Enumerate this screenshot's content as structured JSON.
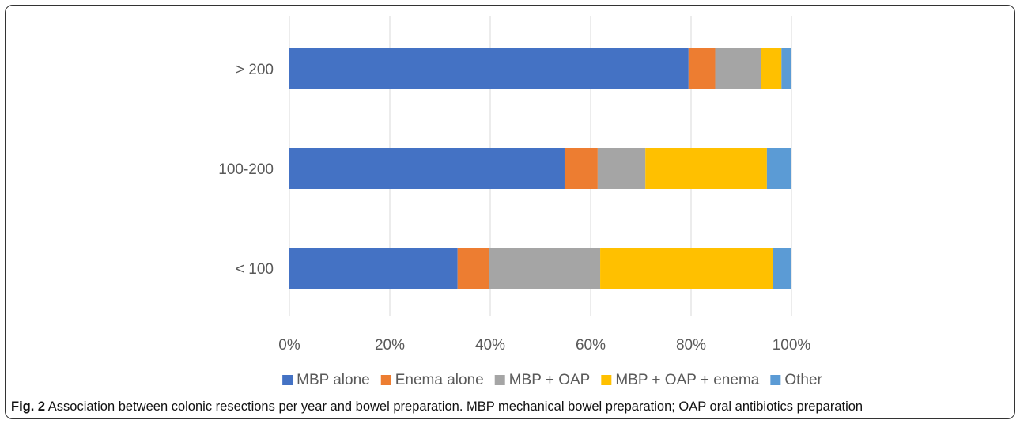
{
  "chart_data": {
    "type": "bar",
    "orientation": "horizontal",
    "stacked": "percent",
    "categories": [
      "> 200",
      "100-200",
      "< 100"
    ],
    "series": [
      {
        "name": "MBP alone",
        "color": "#4472C4",
        "values": [
          79.5,
          54.8,
          33.5
        ]
      },
      {
        "name": "Enema alone",
        "color": "#ED7D31",
        "values": [
          5.3,
          6.6,
          6.2
        ]
      },
      {
        "name": "MBP + OAP",
        "color": "#A5A5A5",
        "values": [
          9.2,
          9.5,
          22.2
        ]
      },
      {
        "name": "MBP + OAP + enema",
        "color": "#FFC000",
        "values": [
          4.0,
          24.2,
          34.4
        ]
      },
      {
        "name": "Other",
        "color": "#5B9BD5",
        "values": [
          2.0,
          4.9,
          3.7
        ]
      }
    ],
    "xlim": [
      0,
      100
    ],
    "xticks": [
      "0%",
      "20%",
      "40%",
      "60%",
      "80%",
      "100%"
    ],
    "grid": true,
    "legend": "bottom"
  },
  "caption": {
    "label": "Fig. 2",
    "text": "Association between colonic resections per year and bowel preparation. MBP mechanical bowel preparation; OAP oral antibiotics preparation"
  }
}
